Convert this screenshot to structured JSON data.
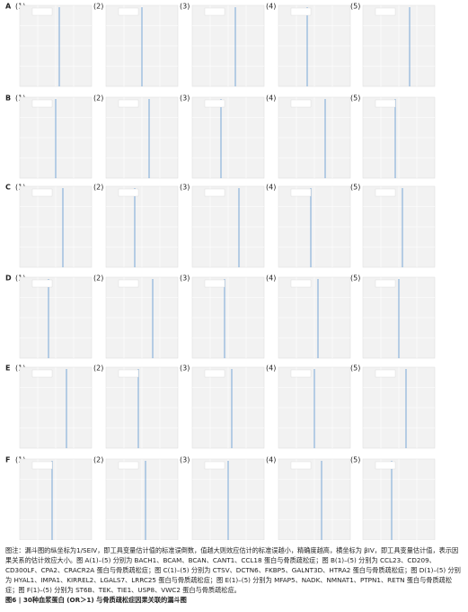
{
  "figure": {
    "rows": [
      {
        "letter": "A",
        "panels": [
          "(1)",
          "(2)",
          "(3)",
          "(4)",
          "(5)"
        ]
      },
      {
        "letter": "B",
        "panels": [
          "(1)",
          "(2)",
          "(3)",
          "(4)",
          "(5)"
        ]
      },
      {
        "letter": "C",
        "panels": [
          "(1)",
          "(2)",
          "(3)",
          "(4)",
          "(5)"
        ]
      },
      {
        "letter": "D",
        "panels": [
          "(1)",
          "(2)",
          "(3)",
          "(4)",
          "(5)"
        ]
      },
      {
        "letter": "E",
        "panels": [
          "(1)",
          "(2)",
          "(3)",
          "(4)",
          "(5)"
        ]
      },
      {
        "letter": "F",
        "panels": [
          "(1)",
          "(2)",
          "(3)",
          "(4)",
          "(5)"
        ]
      }
    ],
    "caption": {
      "note": "图注：漏斗图的纵坐标为1/SEIV，即工具变量估计值的标准误倒数，值越大则效应估计的标准误越小，精确度越高，横坐标为 βIV，即工具变量估计值，表示因果关系的估计效应大小。图 A(1)–(5) 分别为 BACH1、BCAM、BCAN、CANT1、CCL18 蛋白与骨质疏松症；图 B(1)–(5) 分别为 CCL23、CD209、CD300LF、CPA2、CRACR2A 蛋白与骨质疏松症；图 C(1)–(5) 分别为 CTSV、DCTN6、FKBP5、GALNT3D、HTRA2 蛋白与骨质疏松症；图 D(1)–(5) 分别为 HYAL1、IMPA1、KIRREL2、LGALS7、LRRC25 蛋白与骨质疏松症；图 E(1)–(5) 分别为 MFAP5、NADK、NMNAT1、PTPN1、RETN 蛋白与骨质疏松症；图 F(1)–(5) 分别为 ST6B、TEK、TIE1、USP8、VWC2 蛋白与骨质疏松症。",
      "title": "图6 | 30种血浆蛋白 (OR＞1) 与骨质疏松症因果关联的漏斗图"
    }
  }
}
